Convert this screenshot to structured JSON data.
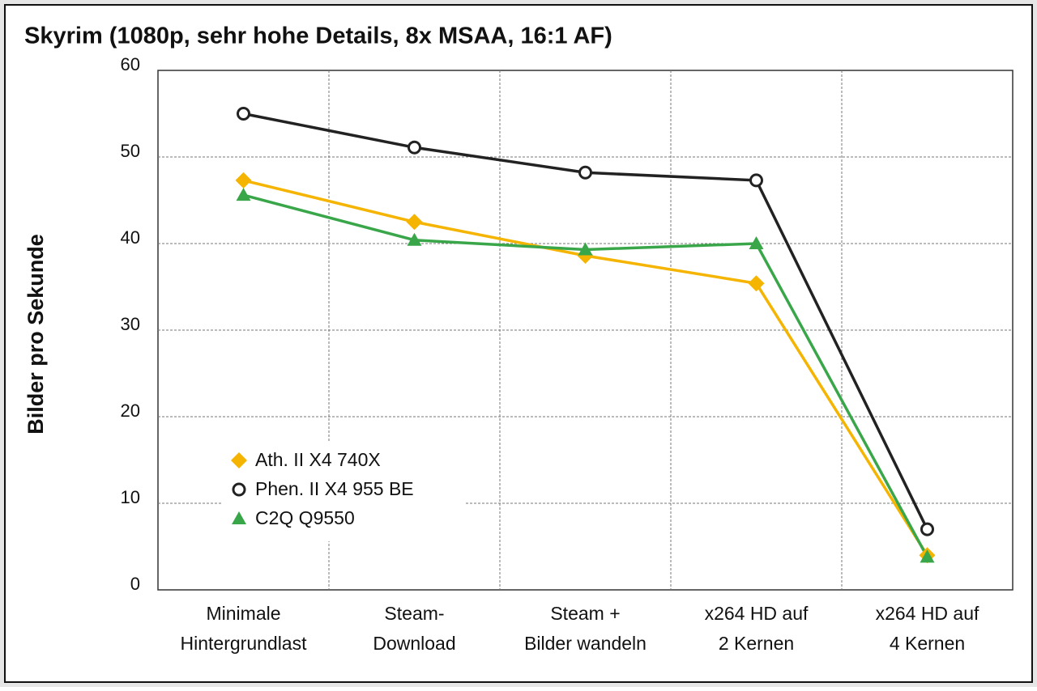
{
  "chart_data": {
    "type": "line",
    "title": "Skyrim (1080p, sehr hohe Details, 8x MSAA, 16:1 AF)",
    "y_label": "Bilder pro Sekunde",
    "categories": [
      [
        "Minimale",
        "Hintergrundlast"
      ],
      [
        "Steam-",
        "Download"
      ],
      [
        "Steam +",
        "Bilder wandeln"
      ],
      [
        "x264 HD auf",
        "2 Kernen"
      ],
      [
        "x264 HD auf",
        "4 Kernen"
      ]
    ],
    "series": [
      {
        "name": "Ath. II X4 740X",
        "color": "#f5b400",
        "marker": "diamond",
        "values": [
          47.3,
          42.5,
          38.6,
          35.4,
          4.0
        ]
      },
      {
        "name": "Phen. II X4 955 BE",
        "color": "#222222",
        "marker": "circle",
        "values": [
          55.0,
          51.1,
          48.2,
          47.3,
          7.0
        ]
      },
      {
        "name": "C2Q Q9550",
        "color": "#3aa64a",
        "marker": "triangle",
        "values": [
          45.6,
          40.4,
          39.3,
          40.0,
          3.8
        ]
      }
    ],
    "ylim": [
      0,
      60
    ],
    "yticks": [
      0,
      10,
      20,
      30,
      40,
      50,
      60
    ],
    "grid": true,
    "legend": "lower left"
  }
}
